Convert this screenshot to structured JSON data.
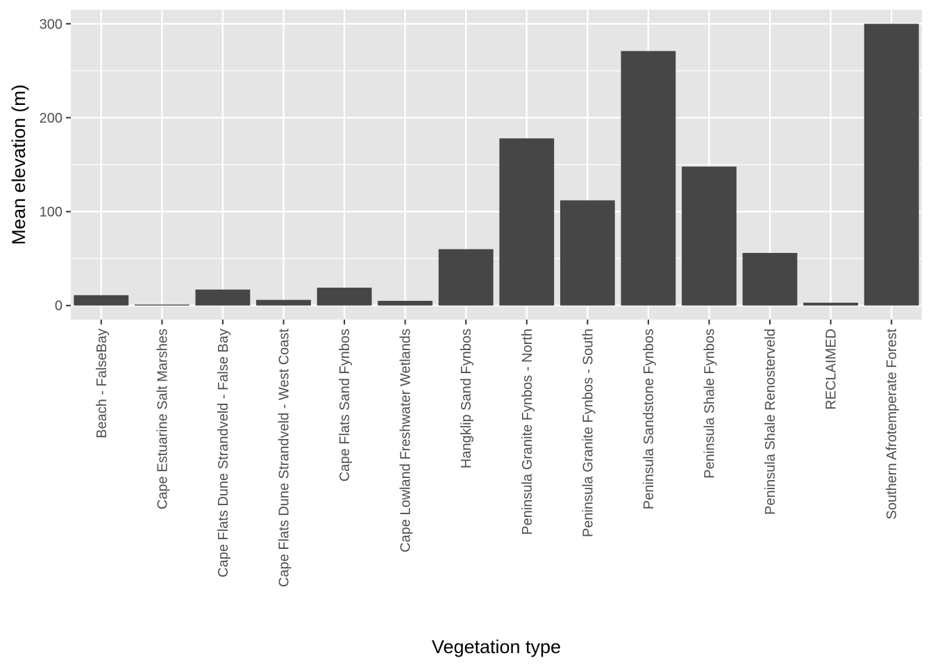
{
  "chart_data": {
    "type": "bar",
    "xlabel": "Vegetation type",
    "ylabel": "Mean elevation (m)",
    "categories": [
      "Beach - FalseBay",
      "Cape Estuarine Salt Marshes",
      "Cape Flats Dune Strandveld - False Bay",
      "Cape Flats Dune Strandveld - West Coast",
      "Cape Flats Sand Fynbos",
      "Cape Lowland Freshwater Wetlands",
      "Hangklip Sand Fynbos",
      "Peninsula Granite Fynbos - North",
      "Peninsula Granite Fynbos - South",
      "Peninsula Sandstone Fynbos",
      "Peninsula Shale Fynbos",
      "Peninsula Shale Renosterveld",
      "RECLAIMED",
      "Southern Afrotemperate Forest"
    ],
    "values": [
      11,
      1,
      17,
      6,
      19,
      5,
      60,
      178,
      112,
      271,
      148,
      56,
      3,
      300
    ],
    "ylim": [
      -15,
      315
    ],
    "yticks": [
      0,
      100,
      200,
      300
    ],
    "ytick_labels": [
      "0",
      "100",
      "200",
      "300"
    ],
    "grid": true,
    "colors": {
      "panel_background": "#e5e5e5",
      "grid": "#ffffff",
      "bar": "#464646",
      "tick": "#333333",
      "tick_text": "#4d4d4d"
    }
  }
}
